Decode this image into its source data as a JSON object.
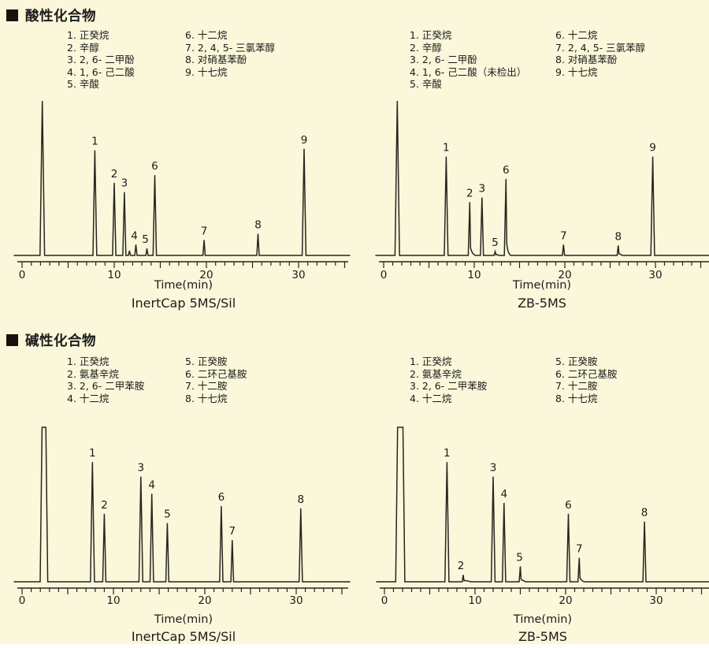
{
  "colors": {
    "background": "#FAF7DA",
    "line": "#26261f",
    "text": "#1b1b1b"
  },
  "sections": [
    {
      "title": "酸性化合物",
      "panels": [
        {
          "legend_col1": [
            "1. 正癸烷",
            "2. 辛醇",
            "3. 2, 6- 二甲酚",
            "4. 1, 6- 己二酸",
            "5. 辛酸"
          ],
          "legend_col2": [
            "6. 十二烷",
            "7. 2, 4, 5- 三氯苯醇",
            "8. 对硝基苯酚",
            "9. 十七烷"
          ]
        },
        {
          "legend_col1": [
            "1. 正癸烷",
            "2. 辛醇",
            "3. 2, 6- 二甲酚",
            "4. 1, 6- 己二酸（未检出）",
            "5. 辛酸"
          ],
          "legend_col2": [
            "6. 十二烷",
            "7. 2, 4, 5- 三氯苯醇",
            "8. 对硝基苯酚",
            "9. 十七烷"
          ]
        }
      ]
    },
    {
      "title": "碱性化合物",
      "panels": [
        {
          "legend_col1": [
            "1. 正癸烷",
            "2. 氨基辛烷",
            "3. 2, 6- 二甲苯胺",
            "4. 十二烷"
          ],
          "legend_col2": [
            "5. 正癸胺",
            "6. 二环己基胺",
            "7. 十二胺",
            "8. 十七烷"
          ]
        },
        {
          "legend_col1": [
            "1. 正癸烷",
            "2. 氨基辛烷",
            "3. 2, 6- 二甲苯胺",
            "4. 十二烷"
          ],
          "legend_col2": [
            "5. 正癸胺",
            "6. 二环己基胺",
            "7. 十二胺",
            "8. 十七烷"
          ]
        }
      ]
    }
  ],
  "chart_data": [
    {
      "type": "line",
      "section": "酸性化合物",
      "title": "InertCap 5MS/Sil",
      "xlabel": "Time(min)",
      "xlim": [
        0,
        35.5
      ],
      "x_ticks": [
        0,
        10,
        20,
        30
      ],
      "minor_tick_every_min": 1,
      "grid": false,
      "peaks": [
        {
          "label": "",
          "t": 2.2,
          "h": 1.0
        },
        {
          "label": "1",
          "t": 7.9,
          "h": 0.68
        },
        {
          "label": "2",
          "t": 10.0,
          "h": 0.47
        },
        {
          "label": "3",
          "t": 11.1,
          "h": 0.41
        },
        {
          "label": "",
          "t": 11.65,
          "h": 0.03
        },
        {
          "label": "4",
          "t": 12.35,
          "h": 0.07,
          "dx": -2
        },
        {
          "label": "5",
          "t": 13.55,
          "h": 0.045,
          "dx": -2
        },
        {
          "label": "6",
          "t": 14.4,
          "h": 0.52
        },
        {
          "label": "7",
          "t": 19.75,
          "h": 0.1
        },
        {
          "label": "8",
          "t": 25.6,
          "h": 0.14
        },
        {
          "label": "9",
          "t": 30.6,
          "h": 0.69
        }
      ]
    },
    {
      "type": "line",
      "section": "酸性化合物",
      "title": "ZB-5MS",
      "xlabel": "Time(min)",
      "xlim": [
        0,
        35.5
      ],
      "x_ticks": [
        0,
        10,
        20,
        30
      ],
      "minor_tick_every_min": 1,
      "grid": false,
      "peaks": [
        {
          "label": "",
          "t": 1.5,
          "h": 1.0
        },
        {
          "label": "1",
          "t": 6.9,
          "h": 0.64
        },
        {
          "label": "2",
          "t": 9.5,
          "h": 0.345,
          "tail": 7
        },
        {
          "label": "3",
          "t": 10.85,
          "h": 0.375
        },
        {
          "label": "5",
          "t": 12.3,
          "h": 0.025,
          "tail": 4
        },
        {
          "label": "6",
          "t": 13.5,
          "h": 0.495,
          "tail": 6
        },
        {
          "label": "7",
          "t": 19.85,
          "h": 0.07
        },
        {
          "label": "8",
          "t": 25.9,
          "h": 0.065,
          "tail": 5
        },
        {
          "label": "9",
          "t": 29.7,
          "h": 0.64
        }
      ]
    },
    {
      "type": "line",
      "section": "碱性化合物",
      "title": "InertCap 5MS/Sil",
      "xlabel": "Time(min)",
      "xlim": [
        0,
        35.5
      ],
      "x_ticks": [
        0,
        10,
        20,
        30
      ],
      "minor_tick_every_min": 1,
      "grid": false,
      "peaks": [
        {
          "label": "",
          "t": 2.4,
          "h": 1.0,
          "clipped": true,
          "w": 3
        },
        {
          "label": "1",
          "t": 7.7,
          "h": 0.775
        },
        {
          "label": "2",
          "t": 9.0,
          "h": 0.44
        },
        {
          "label": "3",
          "t": 13.0,
          "h": 0.68
        },
        {
          "label": "4",
          "t": 14.2,
          "h": 0.57
        },
        {
          "label": "5",
          "t": 15.9,
          "h": 0.38
        },
        {
          "label": "6",
          "t": 21.8,
          "h": 0.49
        },
        {
          "label": "7",
          "t": 23.0,
          "h": 0.27
        },
        {
          "label": "8",
          "t": 30.5,
          "h": 0.475
        }
      ]
    },
    {
      "type": "line",
      "section": "碱性化合物",
      "title": "ZB-5MS",
      "xlabel": "Time(min)",
      "xlim": [
        0,
        35.5
      ],
      "x_ticks": [
        0,
        10,
        20,
        30
      ],
      "minor_tick_every_min": 1,
      "grid": false,
      "peaks": [
        {
          "label": "",
          "t": 1.75,
          "h": 1.0,
          "clipped": true,
          "w": 4
        },
        {
          "label": "1",
          "t": 6.9,
          "h": 0.775
        },
        {
          "label": "2",
          "t": 8.7,
          "h": 0.045,
          "tail": 10,
          "dx": -3
        },
        {
          "label": "3",
          "t": 12.0,
          "h": 0.68
        },
        {
          "label": "4",
          "t": 13.2,
          "h": 0.51
        },
        {
          "label": "5",
          "t": 15.0,
          "h": 0.1,
          "tail": 7,
          "dx": -1
        },
        {
          "label": "6",
          "t": 20.3,
          "h": 0.44
        },
        {
          "label": "7",
          "t": 21.5,
          "h": 0.155,
          "tail": 6
        },
        {
          "label": "8",
          "t": 28.7,
          "h": 0.39
        }
      ]
    }
  ]
}
